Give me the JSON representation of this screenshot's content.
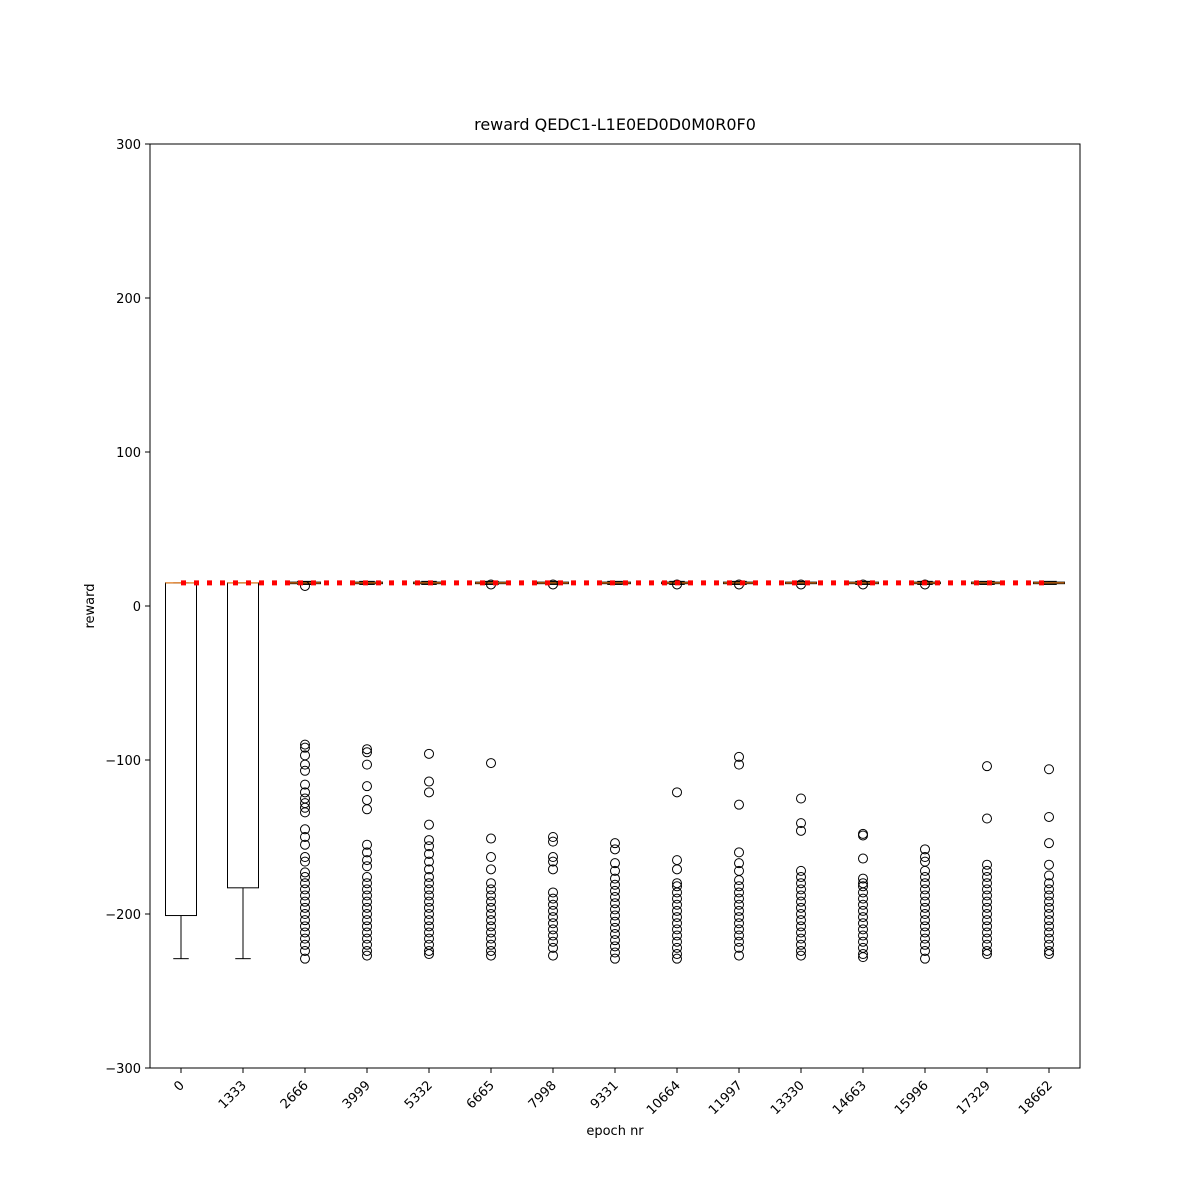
{
  "chart_data": {
    "type": "box",
    "title": "reward QEDC1-L1E0ED0D0M0R0F0",
    "x_label": "epoch nr",
    "y_label": "reward",
    "categories": [
      "0",
      "1333",
      "2666",
      "3999",
      "5332",
      "6665",
      "7998",
      "9331",
      "10664",
      "11997",
      "13330",
      "14663",
      "15996",
      "17329",
      "18662"
    ],
    "boxes": [
      {
        "whislo": -229,
        "q1": -201,
        "med": 15,
        "q3": 15,
        "whishi": 15,
        "fliers": []
      },
      {
        "whislo": -229,
        "q1": -183,
        "med": 15,
        "q3": 15,
        "whishi": 15,
        "fliers": []
      },
      {
        "whislo": 14,
        "q1": 14.5,
        "med": 15,
        "q3": 15.5,
        "whishi": 16,
        "fliers": [
          13,
          -90,
          -92,
          -97,
          -103,
          -107,
          -116,
          -121,
          -125,
          -128,
          -131,
          -134,
          -145,
          -150,
          -155,
          -163,
          -166,
          -173,
          -176,
          -180,
          -184,
          -188,
          -192,
          -196,
          -200,
          -204,
          -208,
          -212,
          -216,
          -220,
          -224,
          -229
        ]
      },
      {
        "whislo": 14,
        "q1": 14.5,
        "med": 15,
        "q3": 15.5,
        "whishi": 16,
        "fliers": [
          -93,
          -95,
          -103,
          -117,
          -126,
          -132,
          -155,
          -160,
          -165,
          -169,
          -176,
          -180,
          -184,
          -188,
          -192,
          -196,
          -200,
          -204,
          -208,
          -212,
          -216,
          -220,
          -224,
          -227
        ]
      },
      {
        "whislo": 14,
        "q1": 14.5,
        "med": 15,
        "q3": 15.5,
        "whishi": 16,
        "fliers": [
          -96,
          -114,
          -121,
          -142,
          -152,
          -156,
          -161,
          -166,
          -171,
          -176,
          -180,
          -184,
          -188,
          -192,
          -196,
          -200,
          -204,
          -208,
          -212,
          -216,
          -220,
          -224,
          -226
        ]
      },
      {
        "whislo": 14,
        "q1": 14.5,
        "med": 15,
        "q3": 15.5,
        "whishi": 16,
        "fliers": [
          14,
          -102,
          -151,
          -163,
          -171,
          -180,
          -184,
          -188,
          -192,
          -196,
          -200,
          -204,
          -208,
          -212,
          -216,
          -220,
          -224,
          -227
        ]
      },
      {
        "whislo": 14,
        "q1": 14.5,
        "med": 15,
        "q3": 15.5,
        "whishi": 16,
        "fliers": [
          14,
          -150,
          -153,
          -163,
          -166,
          -171,
          -186,
          -190,
          -194,
          -198,
          -202,
          -206,
          -210,
          -214,
          -218,
          -222,
          -227
        ]
      },
      {
        "whislo": 14,
        "q1": 14.5,
        "med": 15,
        "q3": 15.5,
        "whishi": 16,
        "fliers": [
          -154,
          -158,
          -167,
          -172,
          -177,
          -181,
          -185,
          -189,
          -193,
          -197,
          -201,
          -205,
          -209,
          -213,
          -217,
          -221,
          -225,
          -229
        ]
      },
      {
        "whislo": 14,
        "q1": 14.5,
        "med": 15,
        "q3": 15.5,
        "whishi": 16,
        "fliers": [
          14,
          -121,
          -165,
          -171,
          -180,
          -182,
          -186,
          -190,
          -194,
          -198,
          -202,
          -206,
          -210,
          -214,
          -218,
          -222,
          -226,
          -229
        ]
      },
      {
        "whislo": 14,
        "q1": 14.5,
        "med": 15,
        "q3": 15.5,
        "whishi": 16,
        "fliers": [
          14,
          -98,
          -103,
          -129,
          -160,
          -167,
          -172,
          -178,
          -182,
          -186,
          -190,
          -194,
          -198,
          -202,
          -206,
          -210,
          -214,
          -218,
          -222,
          -227
        ]
      },
      {
        "whislo": 14,
        "q1": 14.5,
        "med": 15,
        "q3": 15.5,
        "whishi": 16,
        "fliers": [
          14,
          -125,
          -141,
          -146,
          -172,
          -176,
          -180,
          -184,
          -188,
          -192,
          -196,
          -200,
          -204,
          -208,
          -212,
          -216,
          -220,
          -224,
          -227
        ]
      },
      {
        "whislo": 14,
        "q1": 14.5,
        "med": 15,
        "q3": 15.5,
        "whishi": 16,
        "fliers": [
          14,
          -148,
          -149,
          -164,
          -177,
          -180,
          -182,
          -186,
          -190,
          -194,
          -198,
          -202,
          -206,
          -210,
          -214,
          -218,
          -222,
          -226,
          -228
        ]
      },
      {
        "whislo": 14,
        "q1": 14.5,
        "med": 15,
        "q3": 15.5,
        "whishi": 16,
        "fliers": [
          14,
          -158,
          -163,
          -166,
          -172,
          -176,
          -180,
          -184,
          -188,
          -192,
          -196,
          -200,
          -204,
          -208,
          -212,
          -216,
          -220,
          -224,
          -229
        ]
      },
      {
        "whislo": 14,
        "q1": 14.5,
        "med": 15,
        "q3": 15.5,
        "whishi": 16,
        "fliers": [
          -104,
          -138,
          -168,
          -172,
          -176,
          -180,
          -184,
          -188,
          -192,
          -196,
          -200,
          -204,
          -208,
          -212,
          -216,
          -220,
          -224,
          -226
        ]
      },
      {
        "whislo": 14,
        "q1": 14.5,
        "med": 15,
        "q3": 15.5,
        "whishi": 16,
        "fliers": [
          -106,
          -137,
          -154,
          -168,
          -175,
          -180,
          -184,
          -188,
          -192,
          -196,
          -200,
          -204,
          -208,
          -212,
          -216,
          -220,
          -224,
          -226
        ]
      }
    ],
    "box_color": "#000000",
    "median_color": "#ff7f0e",
    "reference_line": {
      "value": 15,
      "color": "#ff0000"
    },
    "ylim": [
      -300,
      300
    ],
    "yticks": [
      {
        "value": -300,
        "label": "−300"
      },
      {
        "value": -200,
        "label": "−200"
      },
      {
        "value": -100,
        "label": "−100"
      },
      0,
      100,
      200,
      300
    ]
  }
}
